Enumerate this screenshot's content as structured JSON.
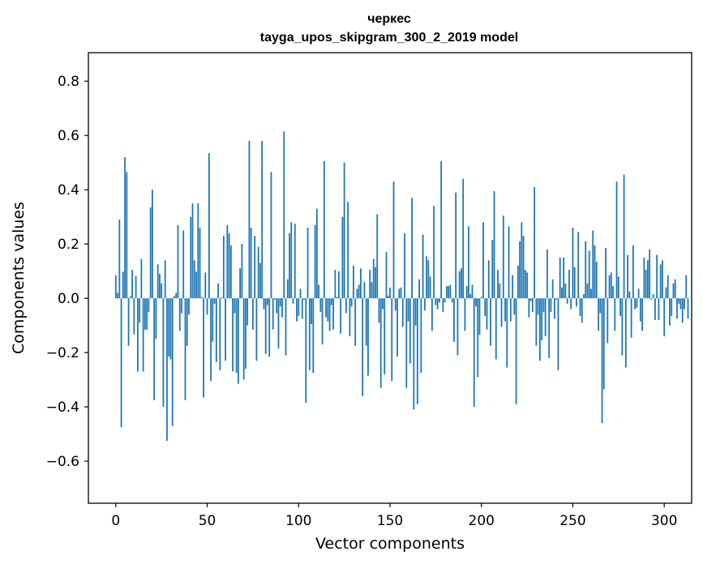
{
  "chart_data": {
    "type": "bar",
    "title": "черкес",
    "subtitle": "tayga_upos_skipgram_300_2_2019 model",
    "xlabel": "Vector components",
    "ylabel": "Components values",
    "xlim": [
      -15,
      315
    ],
    "ylim": [
      -0.755,
      0.905
    ],
    "xticks": [
      0,
      50,
      100,
      150,
      200,
      250,
      300
    ],
    "yticks": [
      -0.6,
      -0.4,
      -0.2,
      0.0,
      0.2,
      0.4,
      0.6,
      0.8
    ],
    "ytick_labels": [
      "−0.6",
      "−0.4",
      "−0.2",
      "0.0",
      "0.2",
      "0.4",
      "0.6",
      "0.8"
    ],
    "xtick_labels": [
      "0",
      "50",
      "100",
      "150",
      "200",
      "250",
      "300"
    ],
    "bar_color": "#1f77b4",
    "values": [
      0.085,
      0.02,
      0.29,
      -0.475,
      0.098,
      0.52,
      0.465,
      -0.175,
      0.007,
      0.105,
      -0.133,
      0.082,
      -0.27,
      -0.09,
      0.145,
      -0.27,
      -0.115,
      -0.116,
      -0.05,
      0.335,
      0.4,
      -0.375,
      -0.15,
      0.125,
      0.09,
      0.055,
      -0.4,
      0.14,
      -0.525,
      -0.215,
      -0.225,
      -0.47,
      0.008,
      0.02,
      0.27,
      -0.12,
      -0.055,
      0.25,
      -0.375,
      -0.175,
      -0.06,
      0.3,
      0.35,
      0.14,
      0.098,
      0.35,
      0.26,
      0.005,
      -0.365,
      0.095,
      -0.06,
      0.535,
      -0.305,
      -0.16,
      -0.02,
      -0.235,
      0.055,
      -0.265,
      0.004,
      0.23,
      -0.23,
      0.27,
      0.24,
      0.195,
      -0.27,
      -0.055,
      -0.275,
      -0.315,
      0.11,
      0.2,
      -0.3,
      -0.26,
      -0.1,
      0.58,
      0.26,
      -0.115,
      0.23,
      -0.23,
      0.19,
      0.13,
      0.58,
      -0.04,
      -0.205,
      -0.025,
      -0.215,
      0.465,
      -0.115,
      -0.005,
      -0.055,
      -0.185,
      -0.03,
      -0.07,
      0.615,
      -0.21,
      0.07,
      0.24,
      0.28,
      -0.02,
      0.275,
      -0.085,
      -0.065,
      0.035,
      -0.075,
      -0.005,
      -0.385,
      0.26,
      -0.265,
      -0.095,
      -0.275,
      0.27,
      0.33,
      0.05,
      -0.05,
      -0.17,
      0.505,
      -0.07,
      -0.085,
      -0.12,
      -0.025,
      -0.115,
      0.105,
      0.005,
      0.1,
      -0.13,
      0.3,
      0.5,
      -0.055,
      0.355,
      -0.14,
      -0.03,
      0.12,
      -0.175,
      0.035,
      0.05,
      0.11,
      -0.36,
      0.06,
      -0.175,
      -0.285,
      0.105,
      0.06,
      0.145,
      0.115,
      0.31,
      -0.09,
      -0.33,
      -0.04,
      -0.28,
      0.17,
      0.01,
      0.04,
      -0.305,
      0.43,
      -0.045,
      -0.215,
      0.035,
      0.04,
      -0.105,
      0.24,
      -0.33,
      -0.085,
      -0.24,
      0.37,
      -0.41,
      -0.1,
      -0.39,
      0.07,
      -0.275,
      0.235,
      -0.045,
      0.155,
      0.14,
      0.08,
      -0.12,
      0.34,
      -0.025,
      -0.04,
      -0.015,
      0.505,
      -0.05,
      -0.015,
      0.045,
      0.045,
      0.05,
      -0.015,
      -0.16,
      0.39,
      -0.21,
      0.1,
      0.11,
      0.44,
      -0.12,
      0.045,
      0.265,
      0.015,
      0.05,
      -0.4,
      -0.03,
      -0.29,
      -0.135,
      0.005,
      0.28,
      -0.065,
      -0.115,
      0.14,
      -0.175,
      0.215,
      0.395,
      -0.225,
      0.105,
      0.055,
      -0.105,
      0.305,
      -0.085,
      -0.255,
      0.265,
      -0.085,
      0.085,
      -0.06,
      -0.39,
      0.12,
      0.21,
      0.28,
      0.23,
      0.105,
      0.095,
      -0.07,
      -0.01,
      -0.05,
      0.41,
      -0.175,
      -0.06,
      -0.23,
      -0.155,
      -0.05,
      -0.14,
      0.18,
      -0.22,
      -0.05,
      0.07,
      -0.075,
      -0.005,
      -0.265,
      0.15,
      0.04,
      0.15,
      0.055,
      -0.02,
      0.105,
      -0.04,
      0.26,
      0.115,
      -0.03,
      0.245,
      -0.065,
      -0.09,
      0.015,
      0.21,
      0.055,
      0.175,
      0.035,
      0.25,
      0.195,
      0.135,
      -0.12,
      -0.055,
      -0.46,
      -0.335,
      0.185,
      -0.165,
      0.085,
      0.095,
      0.045,
      -0.12,
      0.43,
      0.08,
      -0.065,
      -0.21,
      0.455,
      -0.255,
      0.16,
      0.025,
      -0.145,
      0.195,
      -0.04,
      -0.035,
      0.035,
      -0.085,
      -0.12,
      0.15,
      0.105,
      0.14,
      0.18,
      -0.005,
      0.015,
      -0.08,
      0.16,
      -0.08,
      0.125,
      0.14,
      -0.14,
      0.04,
      0.085,
      -0.1,
      -0.065,
      0.055,
      0.07,
      -0.075,
      -0.02,
      -0.04,
      -0.09,
      -0.04,
      0.085,
      -0.075
    ]
  }
}
